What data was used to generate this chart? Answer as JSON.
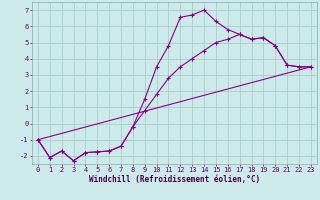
{
  "xlabel": "Windchill (Refroidissement éolien,°C)",
  "bg_color": "#cceaea",
  "grid_color": "#aacccc",
  "line_color": "#880088",
  "line1_x": [
    0,
    1,
    2,
    3,
    4,
    5,
    6,
    7,
    8,
    9,
    10,
    11,
    12,
    13,
    14,
    15,
    16,
    17,
    18,
    19,
    20,
    21,
    22,
    23
  ],
  "line1_y": [
    -1,
    -2.1,
    -1.7,
    -2.3,
    -1.8,
    -1.75,
    -1.7,
    -1.4,
    -0.2,
    1.5,
    3.5,
    4.8,
    6.55,
    6.7,
    7.0,
    6.3,
    5.8,
    5.5,
    5.2,
    5.3,
    4.8,
    3.6,
    3.5,
    3.5
  ],
  "line2_x": [
    0,
    1,
    2,
    3,
    4,
    5,
    6,
    7,
    8,
    9,
    10,
    11,
    12,
    13,
    14,
    15,
    16,
    17,
    18,
    19,
    20,
    21,
    22,
    23
  ],
  "line2_y": [
    -1,
    -2.1,
    -1.7,
    -2.3,
    -1.8,
    -1.75,
    -1.7,
    -1.4,
    -0.2,
    0.8,
    1.8,
    2.8,
    3.5,
    4.0,
    4.5,
    5.0,
    5.2,
    5.5,
    5.2,
    5.3,
    4.8,
    3.6,
    3.5,
    3.5
  ],
  "line3_x": [
    0,
    23
  ],
  "line3_y": [
    -1.0,
    3.5
  ],
  "xlim": [
    -0.5,
    23.5
  ],
  "ylim": [
    -2.5,
    7.5
  ],
  "xticks": [
    0,
    1,
    2,
    3,
    4,
    5,
    6,
    7,
    8,
    9,
    10,
    11,
    12,
    13,
    14,
    15,
    16,
    17,
    18,
    19,
    20,
    21,
    22,
    23
  ],
  "yticks": [
    -2,
    -1,
    0,
    1,
    2,
    3,
    4,
    5,
    6,
    7
  ],
  "xlabel_color": "#440044",
  "tick_color": "#660066",
  "xlabel_fontsize": 5.5,
  "tick_fontsize": 5.0,
  "linewidth": 0.8,
  "markersize": 2.5
}
